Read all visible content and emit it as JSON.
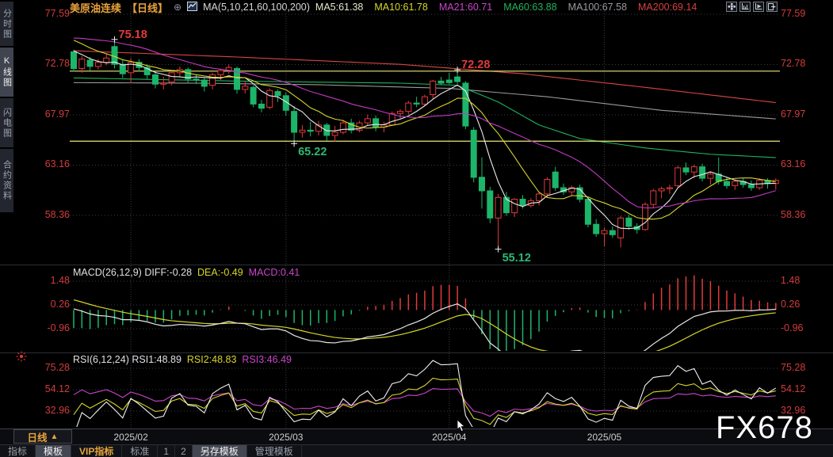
{
  "header": {
    "symbol": "美原油连续",
    "period_tag": "【日线】",
    "link_icon": "⊕",
    "ma_param_label": "MA(5,10,21,60,100,200)",
    "ma_values": [
      {
        "label": "MA5:61.38",
        "color": "#e6e6cc"
      },
      {
        "label": "MA10:61.78",
        "color": "#d6d62a"
      },
      {
        "label": "MA21:60.71",
        "color": "#cc44cc"
      },
      {
        "label": "MA60:63.88",
        "color": "#21b35b"
      },
      {
        "label": "MA100:67.58",
        "color": "#9a9aa0"
      },
      {
        "label": "MA200:69.14",
        "color": "#d84040"
      }
    ],
    "toolbar_icons": [
      "crosshair-icon",
      "pane-axis-icon",
      "pane-play-icon",
      "pane-shift-icon"
    ]
  },
  "sidebar": {
    "items": [
      {
        "label": "分时图",
        "active": false
      },
      {
        "label": "K线图",
        "active": true
      },
      {
        "label": "闪电图",
        "active": false
      },
      {
        "label": "合约资料",
        "active": false
      }
    ]
  },
  "price_panel": {
    "axis_values": [
      77.59,
      72.78,
      67.97,
      63.16,
      58.36
    ],
    "axis_labels": [
      "77.59",
      "72.78",
      "67.97",
      "63.16",
      "58.36"
    ],
    "hlines": [
      72.15,
      65.45
    ],
    "hline_color": "#e8e878",
    "annotations": [
      {
        "text": "75.18",
        "value": 75.18,
        "bar": 5,
        "kind": "high"
      },
      {
        "text": "72.28",
        "value": 72.28,
        "bar": 47,
        "kind": "high"
      },
      {
        "text": "65.22",
        "value": 65.22,
        "bar": 27,
        "kind": "low"
      },
      {
        "text": "55.12",
        "value": 55.12,
        "bar": 52,
        "kind": "low"
      }
    ]
  },
  "macd_panel": {
    "title": "MACD(26,12,9)",
    "diff_label": "DIFF:-0.28",
    "dea_label": "DEA:-0.49",
    "macd_label": "MACD:0.41",
    "diff_value": -0.28,
    "dea_value": -0.49,
    "macd_value": 0.41,
    "axis_values": [
      1.48,
      0.26,
      -0.96
    ],
    "axis_labels": [
      "1.48",
      "0.26",
      "-0.96"
    ]
  },
  "rsi_panel": {
    "title": "RSI(6,12,24)",
    "rsi1_label": "RSI1:48.89",
    "rsi2_label": "RSI2:48.83",
    "rsi3_label": "RSI3:46.49",
    "rsi1_value": 48.89,
    "rsi2_value": 48.83,
    "rsi3_value": 46.49,
    "axis_values": [
      75.28,
      54.12,
      32.96
    ],
    "axis_labels": [
      "75.28",
      "54.12",
      "32.96"
    ]
  },
  "xaxis": {
    "period_label": "日线",
    "period_arrow": "▲",
    "months": [
      {
        "label": "2025/02",
        "bar": 7
      },
      {
        "label": "2025/03",
        "bar": 26
      },
      {
        "label": "2025/04",
        "bar": 46
      },
      {
        "label": "2025/05",
        "bar": 65
      }
    ]
  },
  "bottom_tabs": [
    {
      "label": "指标",
      "selected": false,
      "accent": false,
      "small": false
    },
    {
      "label": "模板",
      "selected": true,
      "accent": false,
      "small": false
    },
    {
      "label": "VIP指标",
      "selected": false,
      "accent": true,
      "small": false
    },
    {
      "label": "标准",
      "selected": false,
      "accent": false,
      "small": false
    },
    {
      "label": "1",
      "selected": false,
      "accent": false,
      "small": true
    },
    {
      "label": "2",
      "selected": false,
      "accent": false,
      "small": true
    },
    {
      "label": "另存模板",
      "selected": true,
      "accent": false,
      "small": false
    },
    {
      "label": "管理模板",
      "selected": false,
      "accent": false,
      "small": false
    }
  ],
  "watermark": "FX678",
  "chart_data": {
    "type": "candlestick",
    "title": "美原油连续 日线 (WTI crude continuous, daily)",
    "price_axis_ticks": [
      77.59,
      72.78,
      67.97,
      63.16,
      58.36
    ],
    "colors": {
      "up": "#e23a3a",
      "down": "#1db56a",
      "ma5": "#ececec",
      "ma10": "#d6d62a",
      "ma21": "#c23ac2",
      "ma60": "#21b35b",
      "ma100": "#9a9aa0",
      "ma200": "#d84545",
      "grid": "#3c3c44",
      "axis_text": "#d23c3c",
      "macd_diff": "#e8e8e8",
      "macd_dea": "#d6d62a",
      "rsi1": "#f0f0f0",
      "rsi2": "#d6d62a",
      "rsi3": "#cc44cc"
    },
    "pre_closes": [
      72.5,
      72.8,
      73.1,
      73.4,
      73.7,
      74.0,
      74.3,
      74.6,
      74.9,
      75.2,
      75.5,
      75.8,
      76.1,
      76.4,
      76.7,
      77.0,
      76.8,
      76.5,
      76.2,
      75.8,
      75.4,
      75.0,
      74.6,
      74.3,
      74.1
    ],
    "bars": [
      [
        74.0,
        74.2,
        72.1,
        72.4
      ],
      [
        72.4,
        73.6,
        72.0,
        73.3
      ],
      [
        73.2,
        73.5,
        72.2,
        72.6
      ],
      [
        72.6,
        73.3,
        72.3,
        73.0
      ],
      [
        73.0,
        73.8,
        72.7,
        73.4
      ],
      [
        74.5,
        75.18,
        72.4,
        72.8
      ],
      [
        72.8,
        73.2,
        71.5,
        71.9
      ],
      [
        72.0,
        73.4,
        71.0,
        73.0
      ],
      [
        73.0,
        73.3,
        72.1,
        72.5
      ],
      [
        72.5,
        72.8,
        71.4,
        71.8
      ],
      [
        71.8,
        72.1,
        70.5,
        70.9
      ],
      [
        70.9,
        71.6,
        70.4,
        71.0
      ],
      [
        71.1,
        72.2,
        70.8,
        72.0
      ],
      [
        72.0,
        72.6,
        71.6,
        72.3
      ],
      [
        72.3,
        72.5,
        71.0,
        71.4
      ],
      [
        71.4,
        71.8,
        70.9,
        71.3
      ],
      [
        71.3,
        71.5,
        70.2,
        70.7
      ],
      [
        70.8,
        72.0,
        70.4,
        71.8
      ],
      [
        71.8,
        72.4,
        71.3,
        72.2
      ],
      [
        72.2,
        72.8,
        71.9,
        72.5
      ],
      [
        72.4,
        72.6,
        70.0,
        70.4
      ],
      [
        70.4,
        71.2,
        70.0,
        70.7
      ],
      [
        70.6,
        70.8,
        68.7,
        69.0
      ],
      [
        69.0,
        69.4,
        68.2,
        68.6
      ],
      [
        68.7,
        70.5,
        68.5,
        70.3
      ],
      [
        70.2,
        70.4,
        69.2,
        69.8
      ],
      [
        69.8,
        70.1,
        67.9,
        68.4
      ],
      [
        68.3,
        68.8,
        65.22,
        66.3
      ],
      [
        66.3,
        67.0,
        65.8,
        66.5
      ],
      [
        66.5,
        67.3,
        65.9,
        66.4
      ],
      [
        66.4,
        67.4,
        66.0,
        67.0
      ],
      [
        67.0,
        67.2,
        65.5,
        66.0
      ],
      [
        66.0,
        66.9,
        65.4,
        66.3
      ],
      [
        66.3,
        67.5,
        66.1,
        67.2
      ],
      [
        67.2,
        67.6,
        66.2,
        66.5
      ],
      [
        66.5,
        67.4,
        66.3,
        67.2
      ],
      [
        67.2,
        68.0,
        66.9,
        67.6
      ],
      [
        67.6,
        67.9,
        66.4,
        66.8
      ],
      [
        66.8,
        67.3,
        66.3,
        67.0
      ],
      [
        67.0,
        68.3,
        66.9,
        68.1
      ],
      [
        68.1,
        68.5,
        67.6,
        68.3
      ],
      [
        68.3,
        69.3,
        68.0,
        69.1
      ],
      [
        69.1,
        69.7,
        68.7,
        69.0
      ],
      [
        69.0,
        69.9,
        68.8,
        69.7
      ],
      [
        69.9,
        71.3,
        69.5,
        71.2
      ],
      [
        71.2,
        71.6,
        70.8,
        71.0
      ],
      [
        71.3,
        72.0,
        70.9,
        71.05
      ],
      [
        71.6,
        72.28,
        70.9,
        71.15
      ],
      [
        71.0,
        71.2,
        66.6,
        66.9
      ],
      [
        66.5,
        66.8,
        61.5,
        61.99
      ],
      [
        62.0,
        63.9,
        59.0,
        60.7
      ],
      [
        60.7,
        61.1,
        57.6,
        58.1
      ],
      [
        58.1,
        60.4,
        55.12,
        60.07
      ],
      [
        60.07,
        60.6,
        58.3,
        58.6
      ],
      [
        58.6,
        60.0,
        58.2,
        59.9
      ],
      [
        59.9,
        60.3,
        59.0,
        59.3
      ],
      [
        59.3,
        60.0,
        59.1,
        59.75
      ],
      [
        59.75,
        60.6,
        59.3,
        60.4
      ],
      [
        60.4,
        62.0,
        60.1,
        61.8
      ],
      [
        62.5,
        63.0,
        60.7,
        61.0
      ],
      [
        61.0,
        61.4,
        60.3,
        60.6
      ],
      [
        60.6,
        61.2,
        60.2,
        61.0
      ],
      [
        61.0,
        61.3,
        59.6,
        59.9
      ],
      [
        59.9,
        60.1,
        57.2,
        57.5
      ],
      [
        57.5,
        58.0,
        56.3,
        56.6
      ],
      [
        56.6,
        57.2,
        55.4,
        56.9
      ],
      [
        56.9,
        57.3,
        56.2,
        56.5
      ],
      [
        56.2,
        58.3,
        55.3,
        58.1
      ],
      [
        58.1,
        58.4,
        57.0,
        57.3
      ],
      [
        57.3,
        57.6,
        56.6,
        57.0
      ],
      [
        57.0,
        59.6,
        56.9,
        59.4
      ],
      [
        59.4,
        60.9,
        59.1,
        60.7
      ],
      [
        60.7,
        61.1,
        60.0,
        60.9
      ],
      [
        60.9,
        61.3,
        60.4,
        61.0
      ],
      [
        61.2,
        63.1,
        61.0,
        62.9
      ],
      [
        62.9,
        63.4,
        62.2,
        62.5
      ],
      [
        62.5,
        63.2,
        61.9,
        63.0
      ],
      [
        63.0,
        63.3,
        61.6,
        61.9
      ],
      [
        61.9,
        62.5,
        61.3,
        62.3
      ],
      [
        62.3,
        63.9,
        61.3,
        61.6
      ],
      [
        61.6,
        62.0,
        60.9,
        61.2
      ],
      [
        61.2,
        61.8,
        60.8,
        61.6
      ],
      [
        61.6,
        61.9,
        61.0,
        61.3
      ],
      [
        61.3,
        61.7,
        60.7,
        61.0
      ],
      [
        61.0,
        61.9,
        60.8,
        61.7
      ],
      [
        61.7,
        61.9,
        60.9,
        61.4
      ],
      [
        61.4,
        61.9,
        60.8,
        61.7
      ]
    ],
    "ma_overlays": [
      {
        "name": "MA60",
        "color": "#21b35b",
        "points": [
          [
            0,
            71.5
          ],
          [
            20,
            71.2
          ],
          [
            40,
            71.0
          ],
          [
            47,
            70.8
          ],
          [
            52,
            69.2
          ],
          [
            57,
            67.0
          ],
          [
            62,
            65.7
          ],
          [
            70,
            64.8
          ],
          [
            78,
            64.2
          ],
          [
            86,
            63.88
          ]
        ]
      },
      {
        "name": "MA100",
        "color": "#9a9aa0",
        "points": [
          [
            0,
            71.05
          ],
          [
            15,
            71.0
          ],
          [
            30,
            70.85
          ],
          [
            46,
            70.5
          ],
          [
            58,
            69.7
          ],
          [
            72,
            68.4
          ],
          [
            86,
            67.58
          ]
        ]
      },
      {
        "name": "MA200",
        "color": "#d84545",
        "points": [
          [
            0,
            74.1
          ],
          [
            20,
            73.5
          ],
          [
            40,
            72.8
          ],
          [
            55,
            71.9
          ],
          [
            70,
            70.6
          ],
          [
            86,
            69.14
          ]
        ]
      }
    ]
  }
}
